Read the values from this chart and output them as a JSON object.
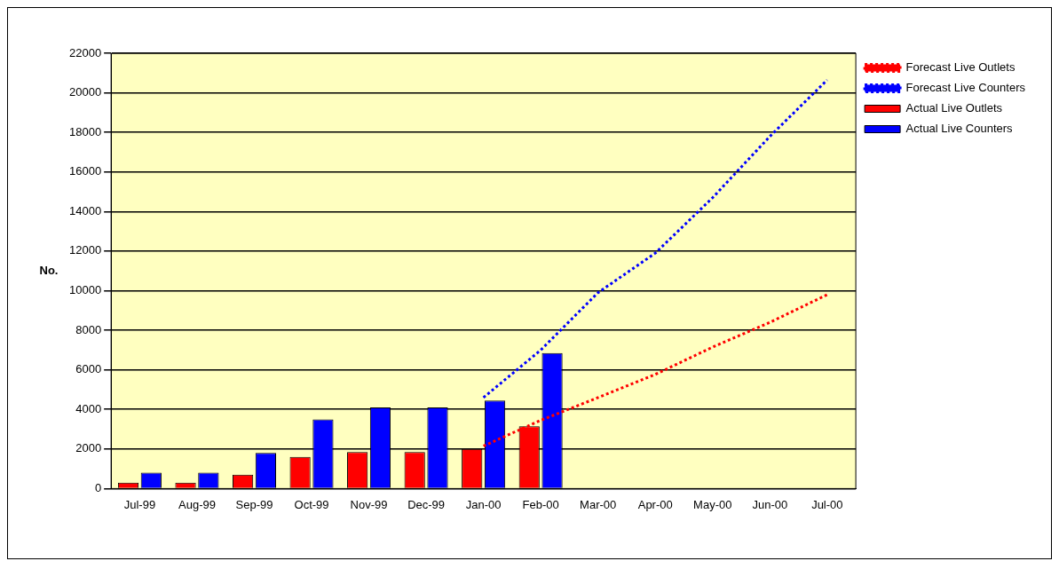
{
  "chart_data": {
    "type": "bar",
    "ylabel": "No.",
    "categories": [
      "Jul-99",
      "Aug-99",
      "Sep-99",
      "Oct-99",
      "Nov-99",
      "Dec-99",
      "Jan-00",
      "Feb-00",
      "Mar-00",
      "Apr-00",
      "May-00",
      "Jun-00",
      "Jul-00"
    ],
    "series": [
      {
        "name": "Actual Live Outlets",
        "color": "#ff0000",
        "values": [
          300,
          300,
          700,
          1600,
          1850,
          1850,
          2000,
          3150,
          null,
          null,
          null,
          null,
          null
        ]
      },
      {
        "name": "Actual Live Counters",
        "color": "#0000ff",
        "values": [
          800,
          800,
          1800,
          3500,
          4100,
          4100,
          4450,
          6850,
          null,
          null,
          null,
          null,
          null
        ]
      },
      {
        "name": "Forecast Live Outlets",
        "type": "line",
        "line_style": "dotted",
        "color": "#ff0000",
        "values": [
          null,
          null,
          null,
          null,
          null,
          null,
          2150,
          3450,
          4600,
          5770,
          7150,
          8400,
          9800
        ]
      },
      {
        "name": "Forecast Live Counters",
        "type": "line",
        "line_style": "dotted",
        "color": "#0000ff",
        "values": [
          null,
          null,
          null,
          null,
          null,
          null,
          4600,
          7000,
          9900,
          11900,
          14700,
          17800,
          20650
        ]
      }
    ],
    "ylim": [
      0,
      22000
    ],
    "yticks": [
      0,
      2000,
      4000,
      6000,
      8000,
      10000,
      12000,
      14000,
      16000,
      18000,
      20000,
      22000
    ],
    "grid": "y",
    "legend": "right",
    "marker": "none"
  }
}
